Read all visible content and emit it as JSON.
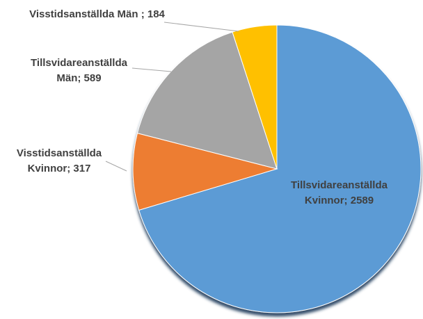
{
  "chart_data": {
    "type": "pie",
    "values": [
      2589,
      317,
      589,
      184
    ],
    "value_labels": [
      "Tillsvidareanställda Kvinnor; 2589",
      "Visstidsanställda Kvinnor; 317",
      "Tillsvidareanställda Män; 589",
      "Visstidsanställda Män ; 184"
    ],
    "colors": [
      "#5b9bd5",
      "#ed7d31",
      "#a5a5a5",
      "#ffc000"
    ]
  }
}
